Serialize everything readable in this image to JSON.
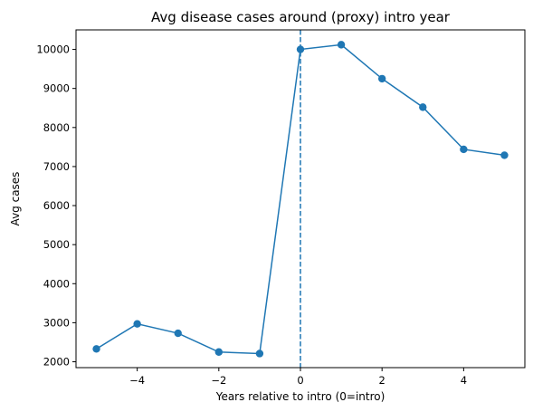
{
  "chart_data": {
    "type": "line",
    "title": "Avg disease cases around (proxy) intro year",
    "xlabel": "Years relative to intro (0=intro)",
    "ylabel": "Avg cases",
    "xlim": [
      -5.5,
      5.5
    ],
    "ylim": [
      1850,
      10500
    ],
    "x_ticks": [
      -4,
      -2,
      0,
      2,
      4
    ],
    "x_tick_labels": [
      "−4",
      "−2",
      "0",
      "2",
      "4"
    ],
    "y_ticks": [
      2000,
      3000,
      4000,
      5000,
      6000,
      7000,
      8000,
      9000,
      10000
    ],
    "y_tick_labels": [
      "2000",
      "3000",
      "4000",
      "5000",
      "6000",
      "7000",
      "8000",
      "9000",
      "10000"
    ],
    "grid": false,
    "series": [
      {
        "color": "#1f77b4",
        "marker": "circle",
        "x": [
          -5,
          -4,
          -3,
          -2,
          -1,
          0,
          1,
          2,
          3,
          4,
          5
        ],
        "y": [
          2330,
          2970,
          2730,
          2250,
          2210,
          10000,
          10120,
          9250,
          8520,
          7440,
          7290
        ]
      }
    ],
    "reference_lines": [
      {
        "orientation": "vertical",
        "x": 0,
        "style": "dashed",
        "color": "#1f77b4"
      }
    ]
  }
}
